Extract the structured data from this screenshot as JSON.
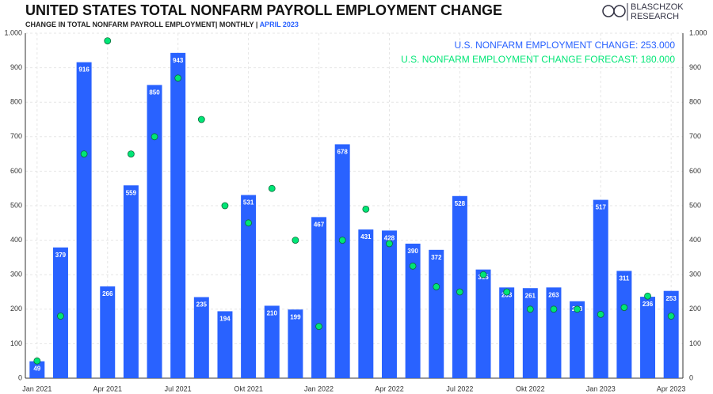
{
  "chart_data": {
    "type": "bar",
    "title": "UNITED STATES TOTAL NONFARM PAYROLL EMPLOYMENT CHANGE",
    "subtitle": "CHANGE IN TOTAL NONFARM PAYROLL EMPLOYMENT| MONTHLY |",
    "subtitle_date": "APRIL 2023",
    "logo": [
      "BLASCHZOK",
      "RESEARCH"
    ],
    "annotations": [
      {
        "text": "U.S. NONFARM EMPLOYMENT CHANGE: 253.000",
        "color": "#2962ff"
      },
      {
        "text": "U.S. NONFARM EMPLOYMENT CHANGE FORECAST: 180.000",
        "color": "#00e676"
      }
    ],
    "categories": [
      "Jan 2021",
      null,
      null,
      "Apr 2021",
      null,
      null,
      "Jul 2021",
      null,
      null,
      "Okt 2021",
      null,
      null,
      "Jan 2022",
      null,
      null,
      "Apr 2022",
      null,
      null,
      "Jul 2022",
      null,
      null,
      "Okt 2022",
      null,
      null,
      "Jan 2023",
      null,
      null,
      "Apr 2023"
    ],
    "series": [
      {
        "type": "bar",
        "color": "#2962ff",
        "values": [
          49,
          379,
          916,
          266,
          559,
          850,
          943,
          235,
          194,
          531,
          210,
          199,
          467,
          678,
          431,
          428,
          390,
          372,
          528,
          315,
          263,
          261,
          263,
          223,
          517,
          311,
          236,
          253
        ]
      },
      {
        "type": "scatter",
        "color": "#00e676",
        "values": [
          50,
          180,
          650,
          978,
          650,
          700,
          870,
          750,
          500,
          450,
          550,
          400,
          150,
          400,
          490,
          390,
          325,
          265,
          250,
          300,
          250,
          200,
          200,
          200,
          185,
          205,
          238,
          180
        ]
      }
    ],
    "ylim": [
      0,
      1000
    ],
    "yticks": [
      0,
      100,
      200,
      300,
      400,
      500,
      600,
      700,
      800,
      900,
      {
        "value": 1000,
        "label": "1.000"
      }
    ],
    "grid": true
  }
}
